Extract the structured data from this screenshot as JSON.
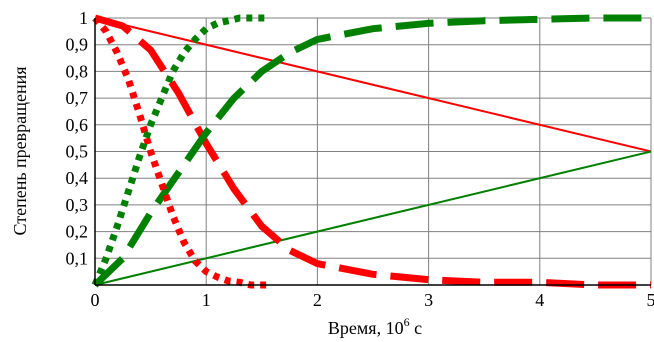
{
  "chart_data": {
    "type": "line",
    "xlabel_main": "Время, 10",
    "xlabel_sup": "6",
    "xlabel_unit": " с",
    "ylabel": "Степень превращения",
    "xlim": [
      0,
      5
    ],
    "ylim": [
      0,
      1
    ],
    "grid": true,
    "x_ticks": [
      "0",
      "1",
      "2",
      "3",
      "4",
      "5"
    ],
    "y_ticks": [
      "0,1",
      "0,2",
      "0,3",
      "0,4",
      "0,5",
      "0,6",
      "0,7",
      "0,8",
      "0,9",
      "1"
    ],
    "colors": {
      "red": "#ff0000",
      "green": "#008000"
    },
    "series": [
      {
        "color": "#ff0000",
        "style": "solid",
        "points": [
          [
            0,
            1.0
          ],
          [
            5,
            0.5
          ]
        ]
      },
      {
        "color": "#008000",
        "style": "solid",
        "points": [
          [
            0,
            0.0
          ],
          [
            5,
            0.5
          ]
        ]
      },
      {
        "color": "#ff0000",
        "style": "dashed",
        "points": [
          [
            0,
            1.0
          ],
          [
            0.25,
            0.97
          ],
          [
            0.5,
            0.88
          ],
          [
            0.75,
            0.72
          ],
          [
            1.0,
            0.53
          ],
          [
            1.25,
            0.36
          ],
          [
            1.5,
            0.22
          ],
          [
            1.75,
            0.13
          ],
          [
            2.0,
            0.08
          ],
          [
            2.5,
            0.04
          ],
          [
            3.0,
            0.02
          ],
          [
            3.5,
            0.01
          ],
          [
            4.0,
            0.01
          ],
          [
            4.5,
            0.0
          ],
          [
            5.0,
            0.0
          ]
        ]
      },
      {
        "color": "#008000",
        "style": "dashed",
        "points": [
          [
            0,
            0.0
          ],
          [
            0.25,
            0.1
          ],
          [
            0.5,
            0.27
          ],
          [
            0.75,
            0.42
          ],
          [
            1.0,
            0.57
          ],
          [
            1.25,
            0.7
          ],
          [
            1.5,
            0.8
          ],
          [
            1.75,
            0.87
          ],
          [
            2.0,
            0.92
          ],
          [
            2.5,
            0.96
          ],
          [
            3.0,
            0.98
          ],
          [
            3.5,
            0.99
          ],
          [
            4.0,
            0.995
          ],
          [
            4.5,
            1.0
          ],
          [
            5.0,
            1.0
          ]
        ]
      },
      {
        "color": "#ff0000",
        "style": "dotted",
        "points": [
          [
            0,
            1.0
          ],
          [
            0.1,
            0.95
          ],
          [
            0.2,
            0.87
          ],
          [
            0.3,
            0.77
          ],
          [
            0.4,
            0.64
          ],
          [
            0.5,
            0.5
          ],
          [
            0.6,
            0.38
          ],
          [
            0.7,
            0.26
          ],
          [
            0.8,
            0.16
          ],
          [
            0.9,
            0.09
          ],
          [
            1.0,
            0.05
          ],
          [
            1.1,
            0.03
          ],
          [
            1.2,
            0.015
          ],
          [
            1.3,
            0.01
          ],
          [
            1.4,
            0.0
          ],
          [
            1.55,
            0.0
          ]
        ]
      },
      {
        "color": "#008000",
        "style": "dotted",
        "points": [
          [
            0,
            0.0
          ],
          [
            0.1,
            0.1
          ],
          [
            0.2,
            0.22
          ],
          [
            0.3,
            0.35
          ],
          [
            0.4,
            0.48
          ],
          [
            0.5,
            0.6
          ],
          [
            0.6,
            0.7
          ],
          [
            0.7,
            0.8
          ],
          [
            0.8,
            0.87
          ],
          [
            0.9,
            0.92
          ],
          [
            1.0,
            0.96
          ],
          [
            1.1,
            0.98
          ],
          [
            1.2,
            0.99
          ],
          [
            1.3,
            1.0
          ],
          [
            1.55,
            1.0
          ]
        ]
      }
    ]
  }
}
